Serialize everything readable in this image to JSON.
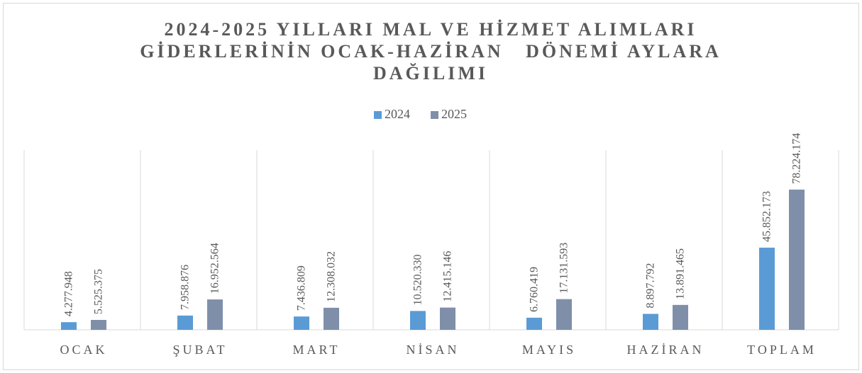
{
  "chart_data": {
    "type": "bar",
    "title": [
      "2024-2025 YILLARI MAL VE HİZMET ALIMLARI",
      "GİDERLERİNİN OCAK-HAZİRAN   DÖNEMİ AYLARA",
      "DAĞILIMI"
    ],
    "categories": [
      "OCAK",
      "ŞUBAT",
      "MART",
      "NİSAN",
      "MAYIS",
      "HAZİRAN",
      "TOPLAM"
    ],
    "series": [
      {
        "name": "2024",
        "color": "#5b9bd5",
        "values": [
          4277948,
          7958876,
          7436809,
          10520330,
          6760419,
          8897792,
          45852173
        ],
        "value_labels": [
          "4.277.948",
          "7.958.876",
          "7.436.809",
          "10.520.330",
          "6.760.419",
          "8.897.792",
          "45.852.173"
        ]
      },
      {
        "name": "2025",
        "color": "#7f8faa",
        "values": [
          5525375,
          16952564,
          12308032,
          12415146,
          17131593,
          13891465,
          78224174
        ],
        "value_labels": [
          "5.525.375",
          "16.952.564",
          "12.308.032",
          "12.415.146",
          "17.131.593",
          "13.891.465",
          "78.224.174"
        ]
      }
    ],
    "legend": "top",
    "grid": "vertical"
  }
}
